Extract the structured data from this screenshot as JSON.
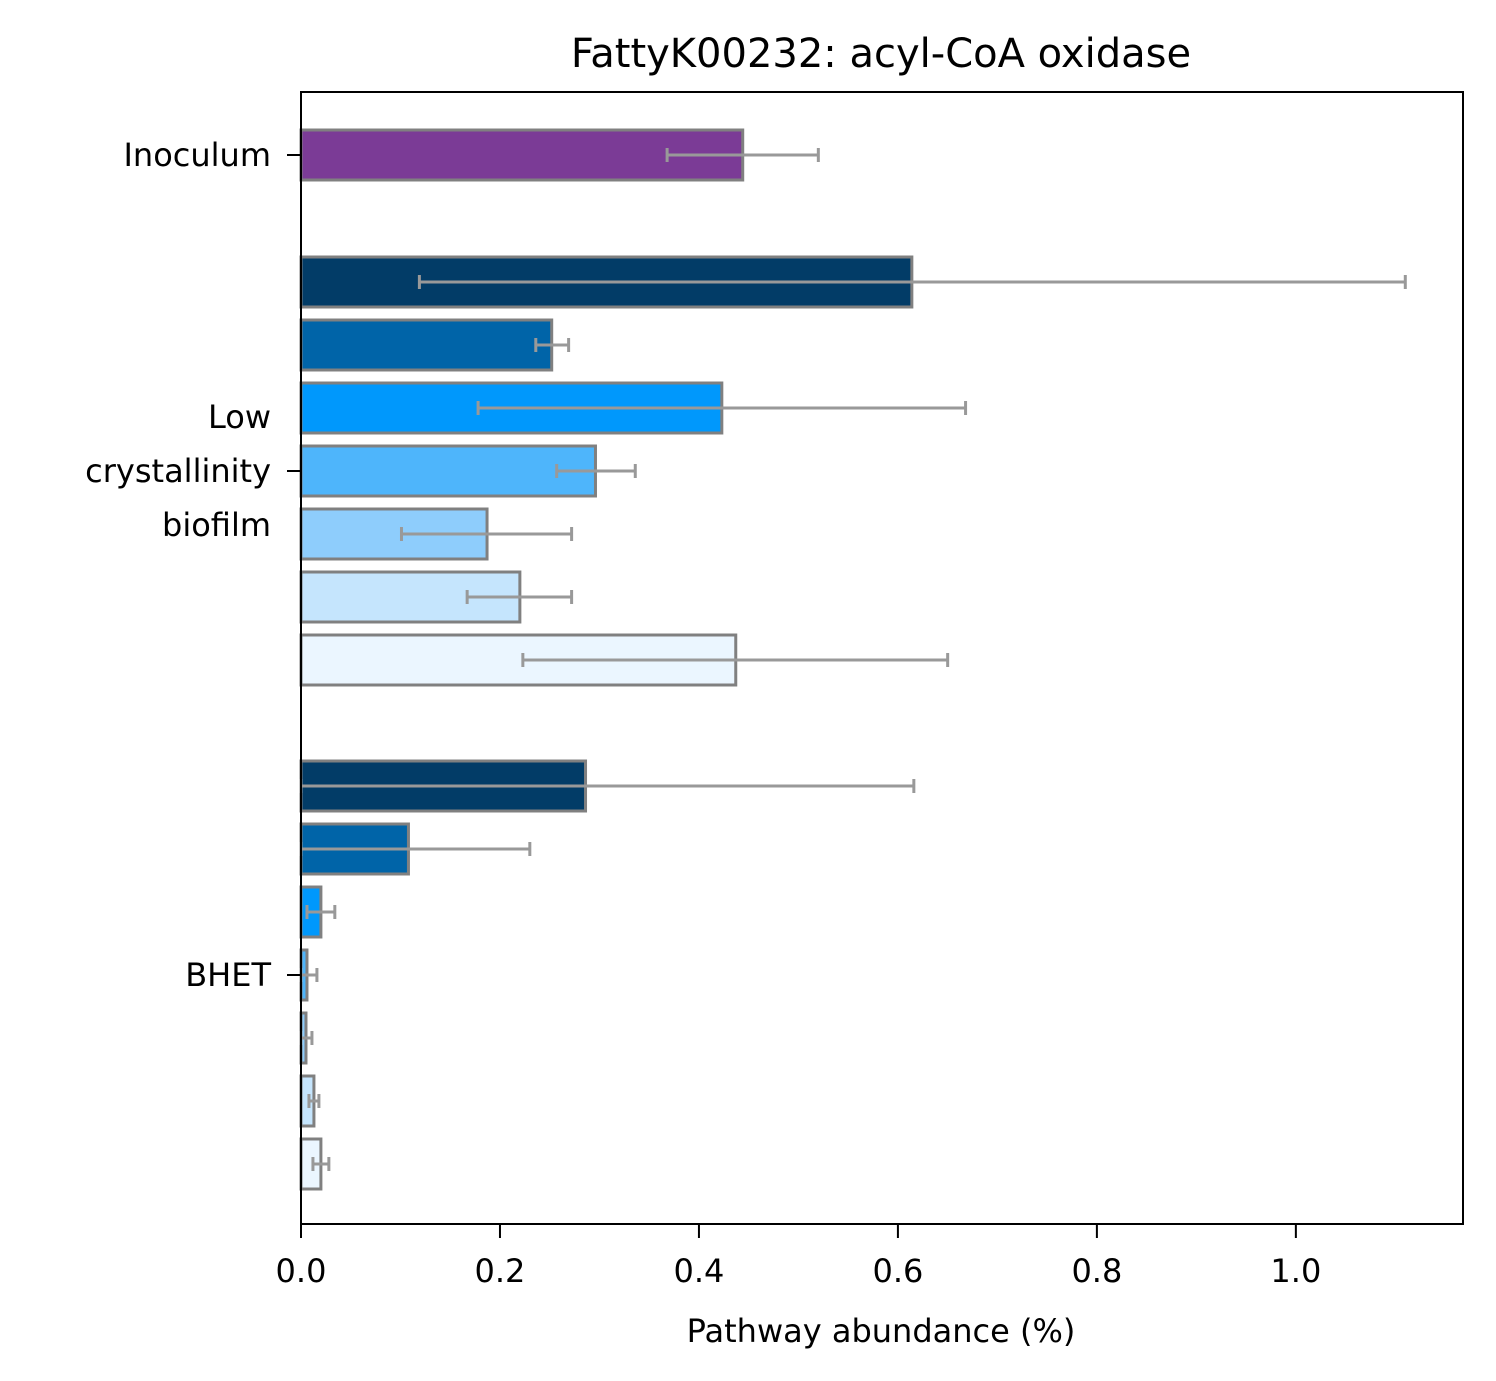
{
  "chart_data": {
    "type": "bar",
    "orientation": "horizontal",
    "title": "FattyK00232: acyl-CoA oxidase",
    "xlabel": "Pathway abundance (%)",
    "ylabel": "",
    "xlim": [
      0,
      1.168
    ],
    "xticks": [
      {
        "value": 0.0,
        "label": "0.0"
      },
      {
        "value": 0.2,
        "label": "0.2"
      },
      {
        "value": 0.4,
        "label": "0.4"
      },
      {
        "value": 0.6,
        "label": "0.6"
      },
      {
        "value": 0.8,
        "label": "0.8"
      },
      {
        "value": 1.0,
        "label": "1.0"
      }
    ],
    "grid": false,
    "legend": "none",
    "bar_edge_color": "#808080",
    "error_bar_color": "#999999",
    "groups": [
      {
        "label_lines": [
          "Inoculum"
        ],
        "bars": [
          {
            "value": 0.444,
            "err_low": 0.368,
            "err_high": 0.52,
            "color": "#7b3b96"
          }
        ]
      },
      {
        "label_lines": [
          "Low",
          "crystallinity",
          "biofilm"
        ],
        "bars": [
          {
            "value": 0.614,
            "err_low": 0.119,
            "err_high": 1.11,
            "color": "#023c67"
          },
          {
            "value": 0.252,
            "err_low": 0.236,
            "err_high": 0.269,
            "color": "#0064a8"
          },
          {
            "value": 0.423,
            "err_low": 0.178,
            "err_high": 0.668,
            "color": "#0098fc"
          },
          {
            "value": 0.296,
            "err_low": 0.257,
            "err_high": 0.336,
            "color": "#4eb5fb"
          },
          {
            "value": 0.187,
            "err_low": 0.101,
            "err_high": 0.272,
            "color": "#8ecdfc"
          },
          {
            "value": 0.22,
            "err_low": 0.167,
            "err_high": 0.272,
            "color": "#c5e5fd"
          },
          {
            "value": 0.437,
            "err_low": 0.223,
            "err_high": 0.65,
            "color": "#ebf6ff"
          }
        ]
      },
      {
        "label_lines": [
          "BHET"
        ],
        "bars": [
          {
            "value": 0.286,
            "err_low": 0.0,
            "err_high": 0.616,
            "color": "#023c67"
          },
          {
            "value": 0.108,
            "err_low": 0.0,
            "err_high": 0.23,
            "color": "#0064a8"
          },
          {
            "value": 0.02,
            "err_low": 0.006,
            "err_high": 0.034,
            "color": "#0098fc"
          },
          {
            "value": 0.006,
            "err_low": 0.0,
            "err_high": 0.016,
            "color": "#4eb5fb"
          },
          {
            "value": 0.005,
            "err_low": 0.0,
            "err_high": 0.011,
            "color": "#8ecdfc"
          },
          {
            "value": 0.013,
            "err_low": 0.008,
            "err_high": 0.018,
            "color": "#c5e5fd"
          },
          {
            "value": 0.02,
            "err_low": 0.012,
            "err_high": 0.028,
            "color": "#ebf6ff"
          }
        ]
      }
    ]
  }
}
